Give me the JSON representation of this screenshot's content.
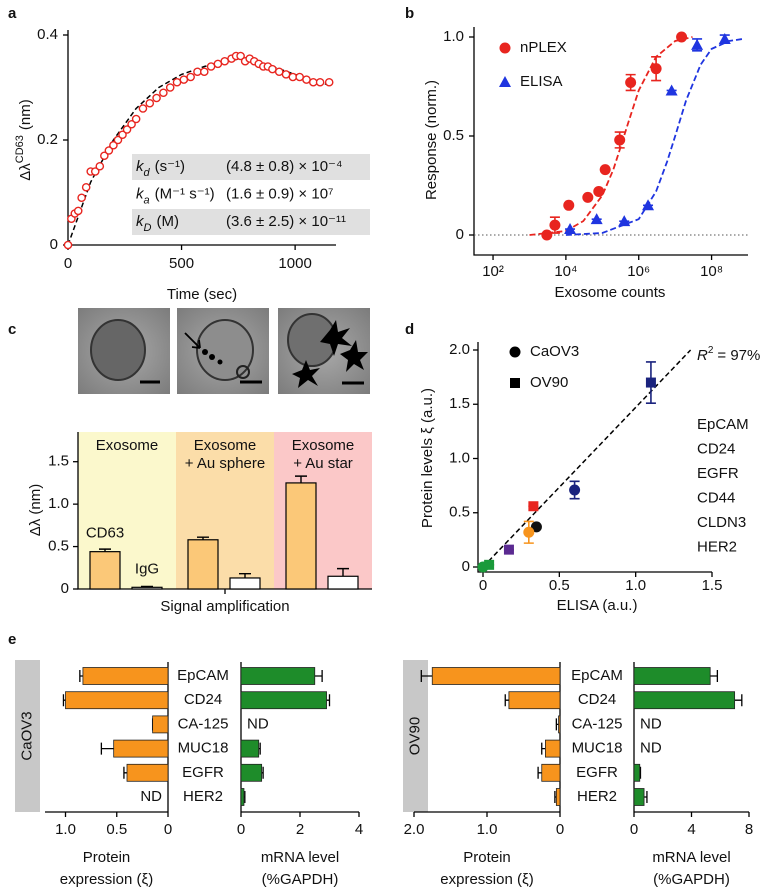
{
  "chart_data": [
    {
      "type": "scatter",
      "panel": "a",
      "x_label": "Time (sec)",
      "y_label": "Δλ",
      "y_label_sup": "CD63",
      "y_label_unit": "(nm)",
      "xlim": [
        0,
        1180
      ],
      "xticks": [
        0,
        500,
        1000
      ],
      "ylim": [
        0,
        0.4
      ],
      "yticks": [
        0,
        0.2,
        0.4
      ],
      "series": [
        {
          "color": "#e8251f",
          "marker": "open_circle",
          "x": [
            0,
            15,
            30,
            45,
            60,
            80,
            100,
            120,
            140,
            160,
            180,
            200,
            220,
            240,
            260,
            280,
            300,
            330,
            360,
            390,
            420,
            450,
            480,
            510,
            540,
            570,
            600,
            630,
            660,
            690,
            720,
            740,
            760,
            780,
            800,
            820,
            840,
            860,
            880,
            900,
            930,
            960,
            990,
            1020,
            1050,
            1080,
            1110,
            1150
          ],
          "values": [
            0,
            0.05,
            0.06,
            0.065,
            0.09,
            0.11,
            0.14,
            0.14,
            0.15,
            0.17,
            0.18,
            0.19,
            0.2,
            0.21,
            0.22,
            0.23,
            0.24,
            0.26,
            0.27,
            0.28,
            0.29,
            0.3,
            0.31,
            0.315,
            0.32,
            0.33,
            0.33,
            0.34,
            0.345,
            0.35,
            0.355,
            0.36,
            0.36,
            0.35,
            0.355,
            0.35,
            0.345,
            0.34,
            0.34,
            0.335,
            0.33,
            0.325,
            0.32,
            0.32,
            0.315,
            0.31,
            0.31,
            0.31
          ]
        }
      ],
      "fit": {
        "x": [
          0,
          100,
          200,
          300,
          400,
          500,
          600,
          700,
          760,
          800,
          900,
          1000,
          1100,
          1150
        ],
        "values": [
          0,
          0.12,
          0.2,
          0.26,
          0.3,
          0.325,
          0.34,
          0.35,
          0.355,
          0.35,
          0.34,
          0.325,
          0.31,
          0.305
        ]
      },
      "table": [
        {
          "symbol": "k",
          "sub": "d",
          "unit": "(s⁻¹)",
          "value": "(4.8 ± 0.8) × 10⁻⁴"
        },
        {
          "symbol": "k",
          "sub": "a",
          "unit": "(M⁻¹ s⁻¹)",
          "value": "(1.6 ± 0.9) × 10⁷"
        },
        {
          "symbol": "k",
          "sub": "D",
          "unit": "(M)",
          "value": "(3.6 ± 2.5) × 10⁻¹¹"
        }
      ]
    },
    {
      "type": "scatter",
      "panel": "b",
      "x_label": "Exosome counts",
      "y_label": "Response (norm.)",
      "log_x": true,
      "xlim": [
        30,
        1000000000
      ],
      "xticks": [
        {
          "value": 100,
          "label": "10²"
        },
        {
          "value": 10000,
          "label": "10⁴"
        },
        {
          "value": 1000000,
          "label": "10⁶"
        },
        {
          "value": 100000000,
          "label": "10⁸"
        }
      ],
      "ylim": [
        -0.1,
        1.05
      ],
      "yticks": [
        0,
        0.5,
        {
          "value": 1,
          "label": "1.0"
        }
      ],
      "reference_line": 0,
      "legend": "upper left",
      "series": [
        {
          "name": "nPLEX",
          "color": "#e8251f",
          "marker": "circle",
          "x": [
            3000,
            5000,
            12000,
            40000,
            80000,
            120000,
            300000,
            600000,
            3000000,
            15000000
          ],
          "values": [
            0,
            0.05,
            0.15,
            0.19,
            0.22,
            0.33,
            0.48,
            0.77,
            0.84,
            1.0
          ],
          "errors": [
            0,
            0.04,
            0,
            0,
            0,
            0,
            0.04,
            0.04,
            0.06,
            0
          ],
          "fit_x": [
            1000,
            10000,
            30000,
            100000,
            200000,
            300000,
            500000,
            1000000,
            3000000,
            10000000,
            30000000
          ],
          "fit_values": [
            0,
            0.02,
            0.07,
            0.2,
            0.33,
            0.43,
            0.56,
            0.73,
            0.9,
            0.98,
            1.0
          ]
        },
        {
          "name": "ELISA",
          "color": "#1f35e0",
          "marker": "triangle",
          "x": [
            13000,
            70000,
            400000,
            1800000,
            8000000,
            40000000,
            230000000
          ],
          "values": [
            0.03,
            0.08,
            0.07,
            0.15,
            0.73,
            0.96,
            0.99
          ],
          "errors": [
            0,
            0,
            0,
            0,
            0,
            0.03,
            0.02
          ],
          "fit_x": [
            10000,
            100000,
            1000000,
            3000000,
            6000000,
            10000000,
            20000000,
            50000000,
            100000000,
            300000000,
            700000000
          ],
          "fit_values": [
            0,
            0.01,
            0.08,
            0.22,
            0.37,
            0.5,
            0.68,
            0.86,
            0.94,
            0.98,
            0.99
          ]
        }
      ]
    },
    {
      "type": "bar",
      "panel": "c",
      "x_label": "Signal amplification",
      "y_label": "Δλ (nm)",
      "ylim": [
        0,
        1.85
      ],
      "yticks": [
        0,
        0.5,
        {
          "value": 1,
          "label": "1.0"
        },
        1.5
      ],
      "regions": [
        {
          "label": [
            "Exosome"
          ],
          "color": "#fbf8cc"
        },
        {
          "label": [
            "Exosome",
            "+ Au sphere"
          ],
          "color": "#fbdda9"
        },
        {
          "label": [
            "Exosome",
            "+ Au star"
          ],
          "color": "#fbc8c8"
        }
      ],
      "series": [
        {
          "name": "CD63",
          "color": "#fbc878",
          "values": [
            0.44,
            0.58,
            1.25
          ],
          "errors": [
            0.03,
            0.03,
            0.08
          ]
        },
        {
          "name": "IgG",
          "color": "#ffffff",
          "values": [
            0.02,
            0.13,
            0.15
          ],
          "errors": [
            0.01,
            0.05,
            0.09
          ]
        }
      ]
    },
    {
      "type": "scatter",
      "panel": "d",
      "x_label": "ELISA (a.u.)",
      "y_label": "Protein levels ξ (a.u.)",
      "xlim": [
        0,
        1.5
      ],
      "xticks": [
        0,
        0.5,
        {
          "value": 1,
          "label": "1.0"
        },
        1.5
      ],
      "ylim": [
        0,
        2
      ],
      "yticks": [
        0,
        0.5,
        {
          "value": 1,
          "label": "1.0"
        },
        1.5,
        {
          "value": 2,
          "label": "2.0"
        }
      ],
      "legend": "upper left",
      "annotation": {
        "symbol": "R",
        "sup": "2",
        "text": "= 97%"
      },
      "fit": {
        "x": [
          0,
          1.36
        ],
        "values": [
          0,
          2.0
        ]
      },
      "series": [
        {
          "name": "CaOV3",
          "color": "#000000",
          "marker": "circle",
          "x": [
            0.6,
            0.35,
            0.3,
            0
          ],
          "values": [
            0.71,
            0.37,
            0.32,
            0
          ],
          "errors": [
            0.08,
            0,
            0.1,
            0
          ],
          "point_colors": [
            "#1a237e",
            "#111111",
            "#f7941d",
            "#1a9a3a"
          ]
        },
        {
          "name": "OV90",
          "color": "#000000",
          "marker": "square",
          "x": [
            1.1,
            0.33,
            0.17,
            0.04
          ],
          "values": [
            1.7,
            0.56,
            0.16,
            0.02
          ],
          "errors": [
            0.19,
            0,
            0,
            0
          ],
          "point_colors": [
            "#1a237e",
            "#e8251f",
            "#5b2a91",
            "#1a9a3a"
          ]
        }
      ],
      "color_legend": [
        {
          "name": "EpCAM",
          "color": "#1a237e"
        },
        {
          "name": "CD24",
          "color": "#e8251f"
        },
        {
          "name": "EGFR",
          "color": "#111111"
        },
        {
          "name": "CD44",
          "color": "#f7941d"
        },
        {
          "name": "CLDN3",
          "color": "#5b2a91"
        },
        {
          "name": "HER2",
          "color": "#1a9a3a"
        }
      ]
    },
    {
      "type": "bar",
      "panel": "e",
      "orientation": "horizontal",
      "groups": [
        {
          "name": "CaOV3",
          "categories": [
            "EpCAM",
            "CD24",
            "CA-125",
            "MUC18",
            "EGFR",
            "HER2"
          ],
          "protein": {
            "x_label": [
              "Protein",
              "expression (ξ)"
            ],
            "color": "#f7941d",
            "xlim": [
              1.2,
              0
            ],
            "xticks": [
              {
                "value": 1,
                "label": "1.0"
              },
              0.5,
              0
            ],
            "values": [
              0.83,
              1.0,
              0.15,
              0.53,
              0.4,
              null
            ],
            "errors": [
              0.03,
              0.02,
              0,
              0.12,
              0.03,
              null
            ],
            "value_labels": [
              null,
              null,
              null,
              null,
              null,
              "ND"
            ]
          },
          "mrna": {
            "x_label": [
              "mRNA level",
              "(%GAPDH)"
            ],
            "color": "#1e8c2a",
            "xlim": [
              0,
              4
            ],
            "xticks": [
              0,
              2,
              4
            ],
            "values": [
              2.5,
              2.9,
              null,
              0.6,
              0.7,
              0.1
            ],
            "errors": [
              0.25,
              0.1,
              null,
              0.05,
              0.05,
              0.03
            ],
            "value_labels": [
              null,
              null,
              "ND",
              null,
              null,
              null
            ]
          }
        },
        {
          "name": "OV90",
          "categories": [
            "EpCAM",
            "CD24",
            "CA-125",
            "MUC18",
            "EGFR",
            "HER2"
          ],
          "protein": {
            "x_label": [
              "Protein",
              "expression (ξ)"
            ],
            "color": "#f7941d",
            "xlim": [
              2,
              0
            ],
            "xticks": [
              {
                "value": 2,
                "label": "2.0"
              },
              {
                "value": 1,
                "label": "1.0"
              },
              0
            ],
            "values": [
              1.75,
              0.7,
              0.02,
              0.2,
              0.25,
              0.05
            ],
            "errors": [
              0.15,
              0.05,
              0.03,
              0.05,
              0.05,
              0.02
            ]
          },
          "mrna": {
            "x_label": [
              "mRNA level",
              "(%GAPDH)"
            ],
            "color": "#1e8c2a",
            "xlim": [
              0,
              8
            ],
            "xticks": [
              0,
              4,
              8
            ],
            "values": [
              5.3,
              7.0,
              null,
              null,
              0.4,
              0.7
            ],
            "errors": [
              0.5,
              0.5,
              null,
              null,
              0.05,
              0.2
            ],
            "value_labels": [
              null,
              null,
              "ND",
              "ND",
              null,
              null
            ]
          }
        }
      ]
    }
  ]
}
